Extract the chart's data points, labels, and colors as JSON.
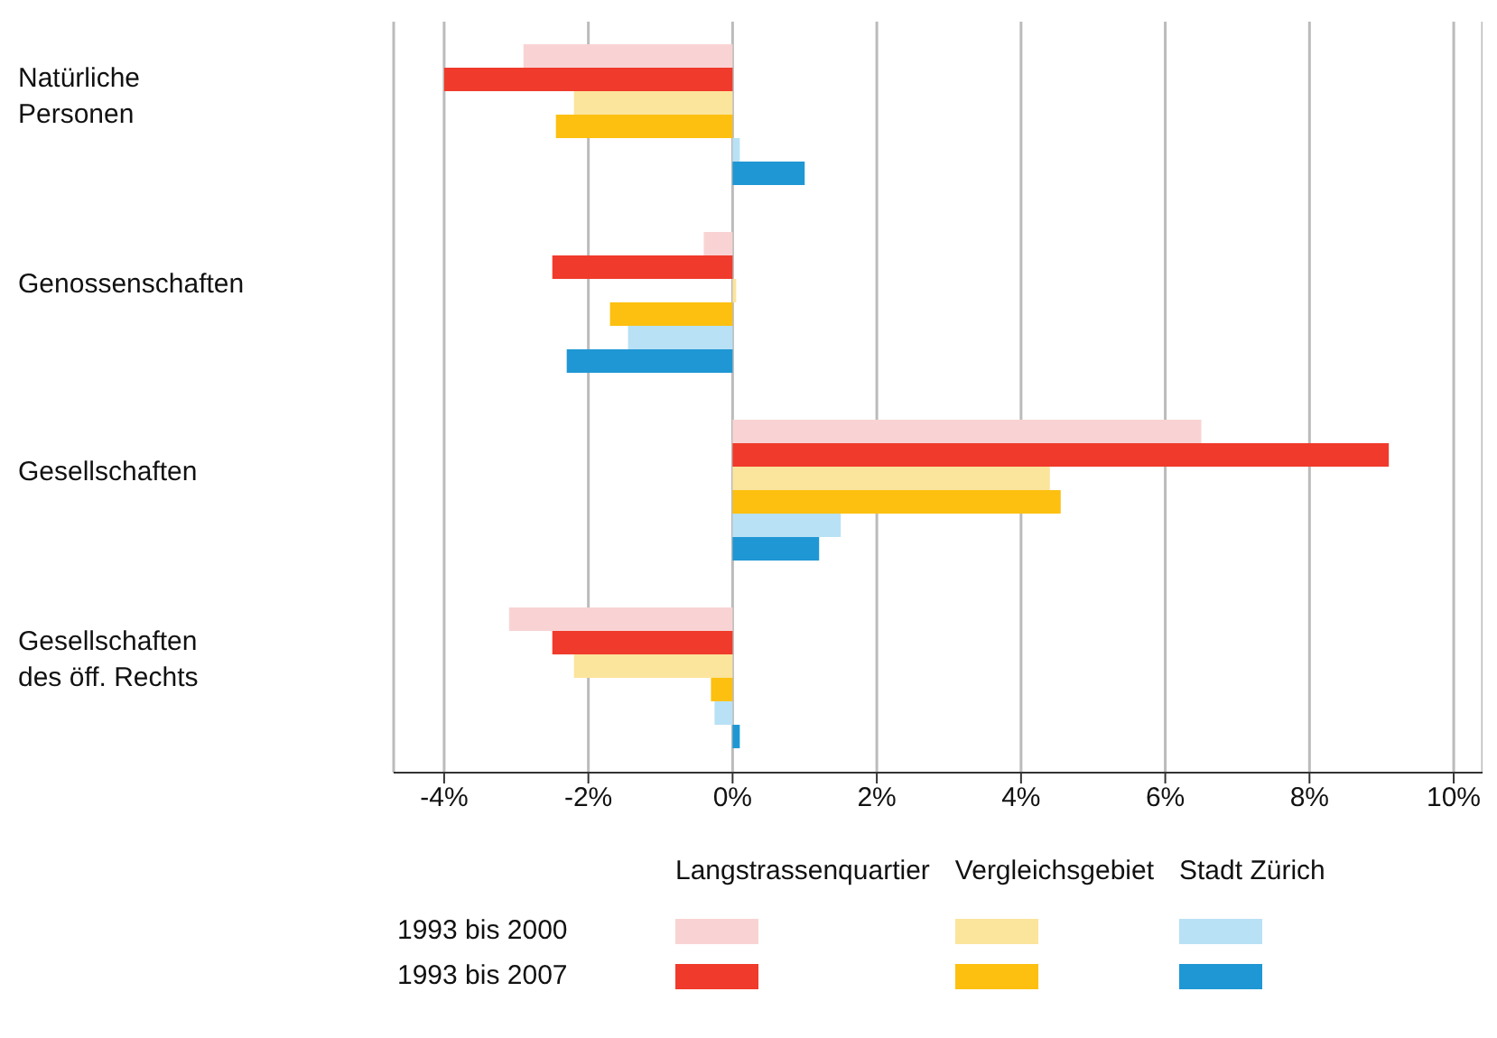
{
  "chart_data": {
    "type": "bar",
    "orientation": "horizontal",
    "categories": [
      "Natürliche Personen",
      "Genossenschaften",
      "Gesellschaften",
      "Gesellschaften des öff. Rechts"
    ],
    "series": [
      {
        "name": "Langstrassenquartier",
        "color": "#f9d3d3",
        "values": [
          -2.9,
          -0.4,
          6.5,
          -3.1
        ]
      },
      {
        "color": "#f03a2b",
        "values": [
          -4.0,
          -2.5,
          9.1,
          -2.5
        ]
      },
      {
        "name": "Vergleichsgebiet",
        "color": "#fbe49c",
        "values": [
          -2.2,
          0.05,
          4.4,
          -2.2
        ]
      },
      {
        "color": "#fdc010",
        "values": [
          -2.45,
          -1.7,
          4.55,
          -0.3
        ]
      },
      {
        "name": "Stadt Zürich",
        "color": "#b8e1f5",
        "values": [
          0.1,
          -1.45,
          1.5,
          -0.25
        ]
      },
      {
        "color": "#1f97d4",
        "values": [
          1.0,
          -2.3,
          1.2,
          0.1
        ]
      }
    ],
    "xlim": [
      -4.7,
      10.4
    ],
    "xticks": [
      {
        "value": -4,
        "label": "-4%"
      },
      {
        "value": -2,
        "label": "-2%"
      },
      {
        "value": 0,
        "label": "0%"
      },
      {
        "value": 2,
        "label": "2%"
      },
      {
        "value": 4,
        "label": "4%"
      },
      {
        "value": 6,
        "label": "6%"
      },
      {
        "value": 8,
        "label": "8%"
      },
      {
        "value": 10,
        "label": "10%"
      }
    ],
    "grid": "x",
    "legend": "bottom",
    "annotations": [
      "1993 bis 2000",
      "1993 bis 2007"
    ]
  }
}
